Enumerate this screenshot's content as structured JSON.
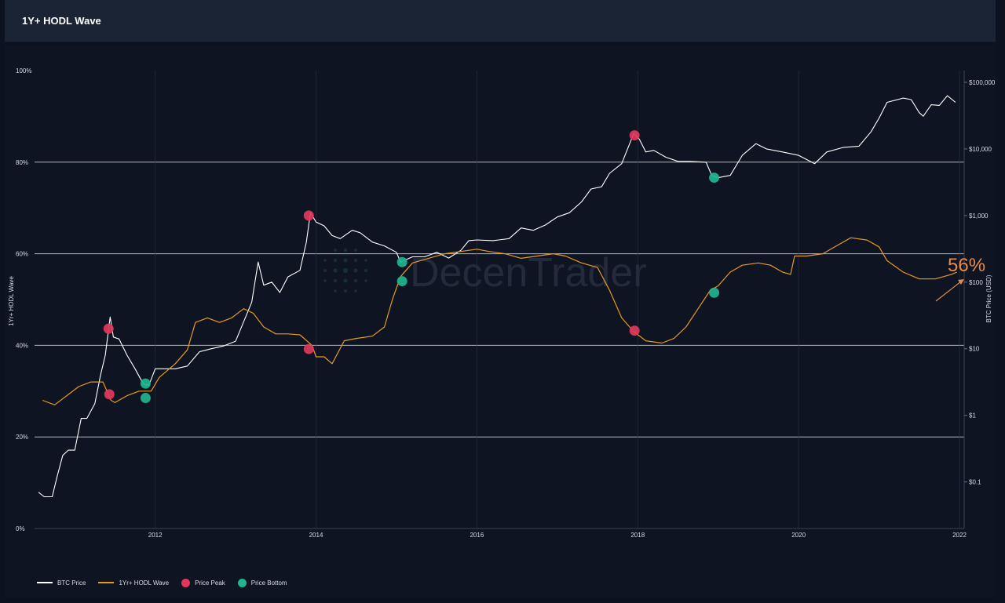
{
  "header": {
    "title": "1Y+ HODL Wave"
  },
  "watermark": {
    "text": "DecenTrader"
  },
  "annotation": {
    "label": "56%",
    "color": "#e88b4a"
  },
  "colors": {
    "btc_price": "#ffffff",
    "hodl_wave": "#e89a1f",
    "price_peak": "#e0385c",
    "price_bottom": "#1fb58f",
    "grid": "#cfd3da",
    "background": "#0e1422"
  },
  "legend": {
    "items": [
      {
        "label": "BTC Price",
        "kind": "line",
        "color": "#ffffff"
      },
      {
        "label": "1Yr+ HODL Wave",
        "kind": "line",
        "color": "#e89a1f"
      },
      {
        "label": "Price Peak",
        "kind": "dot",
        "color": "#e0385c"
      },
      {
        "label": "Price Bottom",
        "kind": "dot",
        "color": "#1fb58f"
      }
    ]
  },
  "chart_data": {
    "type": "line",
    "title": "1Y+ HODL Wave",
    "xlabel": "",
    "ylabel_left": "1Yr+ HODL Wave",
    "ylabel_right": "BTC Price (USD)",
    "x_range": [
      2010.5,
      2022.0
    ],
    "x_ticks": [
      2012,
      2014,
      2016,
      2018,
      2020,
      2022
    ],
    "x_tick_labels": [
      "2012",
      "2014",
      "2016",
      "2018",
      "2020",
      "2022"
    ],
    "y_left_range": [
      0,
      100
    ],
    "y_left_ticks": [
      0,
      20,
      40,
      60,
      80,
      100
    ],
    "y_left_tick_labels": [
      "0%",
      "20%",
      "40%",
      "60%",
      "80%",
      "100%"
    ],
    "y_right_scale": "log",
    "y_right_range": [
      0.02,
      150000
    ],
    "y_right_ticks": [
      0.1,
      1,
      10,
      100,
      1000,
      10000,
      100000
    ],
    "y_right_tick_labels": [
      "$0.1",
      "$1",
      "$10",
      "$100",
      "$1,000",
      "$10,000",
      "$100,000"
    ],
    "grid": true,
    "legend_position": "bottom-left",
    "series": [
      {
        "name": "BTC Price",
        "axis": "right",
        "points": [
          [
            2010.55,
            0.07
          ],
          [
            2010.62,
            0.06
          ],
          [
            2010.72,
            0.06
          ],
          [
            2010.78,
            0.12
          ],
          [
            2010.85,
            0.25
          ],
          [
            2010.92,
            0.3
          ],
          [
            2011.0,
            0.3
          ],
          [
            2011.08,
            0.9
          ],
          [
            2011.15,
            0.9
          ],
          [
            2011.25,
            1.5
          ],
          [
            2011.32,
            4
          ],
          [
            2011.38,
            8
          ],
          [
            2011.44,
            30
          ],
          [
            2011.48,
            15
          ],
          [
            2011.55,
            14
          ],
          [
            2011.65,
            8
          ],
          [
            2011.75,
            5
          ],
          [
            2011.85,
            3
          ],
          [
            2011.92,
            2.8
          ],
          [
            2012.0,
            5
          ],
          [
            2012.1,
            5
          ],
          [
            2012.25,
            5
          ],
          [
            2012.4,
            5.5
          ],
          [
            2012.55,
            9
          ],
          [
            2012.7,
            10
          ],
          [
            2012.85,
            11
          ],
          [
            2013.0,
            13
          ],
          [
            2013.2,
            50
          ],
          [
            2013.28,
            200
          ],
          [
            2013.35,
            90
          ],
          [
            2013.45,
            100
          ],
          [
            2013.55,
            70
          ],
          [
            2013.65,
            120
          ],
          [
            2013.8,
            150
          ],
          [
            2013.88,
            400
          ],
          [
            2013.93,
            1100
          ],
          [
            2014.0,
            800
          ],
          [
            2014.1,
            700
          ],
          [
            2014.2,
            500
          ],
          [
            2014.3,
            450
          ],
          [
            2014.45,
            600
          ],
          [
            2014.55,
            550
          ],
          [
            2014.7,
            400
          ],
          [
            2014.85,
            350
          ],
          [
            2015.0,
            280
          ],
          [
            2015.05,
            200
          ],
          [
            2015.2,
            240
          ],
          [
            2015.35,
            240
          ],
          [
            2015.5,
            280
          ],
          [
            2015.65,
            230
          ],
          [
            2015.8,
            300
          ],
          [
            2015.9,
            420
          ],
          [
            2016.0,
            430
          ],
          [
            2016.2,
            420
          ],
          [
            2016.4,
            450
          ],
          [
            2016.55,
            650
          ],
          [
            2016.7,
            600
          ],
          [
            2016.85,
            720
          ],
          [
            2017.0,
            950
          ],
          [
            2017.15,
            1100
          ],
          [
            2017.3,
            1600
          ],
          [
            2017.42,
            2500
          ],
          [
            2017.55,
            2700
          ],
          [
            2017.65,
            4300
          ],
          [
            2017.8,
            6000
          ],
          [
            2017.95,
            17000
          ],
          [
            2018.02,
            14000
          ],
          [
            2018.1,
            9000
          ],
          [
            2018.2,
            9500
          ],
          [
            2018.35,
            7500
          ],
          [
            2018.5,
            6500
          ],
          [
            2018.65,
            6500
          ],
          [
            2018.85,
            6300
          ],
          [
            2018.92,
            4000
          ],
          [
            2019.0,
            3700
          ],
          [
            2019.15,
            4000
          ],
          [
            2019.3,
            8000
          ],
          [
            2019.47,
            12000
          ],
          [
            2019.6,
            10000
          ],
          [
            2019.8,
            9000
          ],
          [
            2020.0,
            8000
          ],
          [
            2020.2,
            6000
          ],
          [
            2020.35,
            9000
          ],
          [
            2020.55,
            10500
          ],
          [
            2020.75,
            11000
          ],
          [
            2020.9,
            18000
          ],
          [
            2021.0,
            29000
          ],
          [
            2021.1,
            50000
          ],
          [
            2021.3,
            58000
          ],
          [
            2021.4,
            55000
          ],
          [
            2021.5,
            35000
          ],
          [
            2021.55,
            31000
          ],
          [
            2021.65,
            46000
          ],
          [
            2021.75,
            45000
          ],
          [
            2021.85,
            63000
          ],
          [
            2021.95,
            50000
          ]
        ]
      },
      {
        "name": "1Yr+ HODL Wave",
        "axis": "left",
        "points": [
          [
            2010.6,
            28
          ],
          [
            2010.75,
            27
          ],
          [
            2010.9,
            29
          ],
          [
            2011.05,
            31
          ],
          [
            2011.2,
            32
          ],
          [
            2011.35,
            32
          ],
          [
            2011.45,
            28
          ],
          [
            2011.5,
            27.5
          ],
          [
            2011.65,
            29
          ],
          [
            2011.8,
            30
          ],
          [
            2011.95,
            30
          ],
          [
            2012.05,
            33
          ],
          [
            2012.25,
            36
          ],
          [
            2012.4,
            39
          ],
          [
            2012.5,
            45
          ],
          [
            2012.65,
            46
          ],
          [
            2012.8,
            45
          ],
          [
            2012.95,
            46
          ],
          [
            2013.1,
            48
          ],
          [
            2013.22,
            47
          ],
          [
            2013.35,
            44
          ],
          [
            2013.5,
            42.5
          ],
          [
            2013.65,
            42.5
          ],
          [
            2013.8,
            42.3
          ],
          [
            2013.95,
            40
          ],
          [
            2014.0,
            37.5
          ],
          [
            2014.1,
            37.5
          ],
          [
            2014.2,
            36
          ],
          [
            2014.35,
            41
          ],
          [
            2014.5,
            41.5
          ],
          [
            2014.7,
            42
          ],
          [
            2014.85,
            44
          ],
          [
            2014.95,
            50
          ],
          [
            2015.05,
            55
          ],
          [
            2015.2,
            58
          ],
          [
            2015.4,
            59
          ],
          [
            2015.6,
            60
          ],
          [
            2015.8,
            60.5
          ],
          [
            2016.0,
            61
          ],
          [
            2016.15,
            60.5
          ],
          [
            2016.35,
            60
          ],
          [
            2016.55,
            59
          ],
          [
            2016.75,
            59.5
          ],
          [
            2016.95,
            60
          ],
          [
            2017.1,
            59.5
          ],
          [
            2017.3,
            58
          ],
          [
            2017.5,
            57
          ],
          [
            2017.65,
            52
          ],
          [
            2017.8,
            46
          ],
          [
            2017.95,
            43
          ],
          [
            2018.1,
            41
          ],
          [
            2018.3,
            40.5
          ],
          [
            2018.45,
            41.5
          ],
          [
            2018.6,
            44
          ],
          [
            2018.75,
            48
          ],
          [
            2018.9,
            52
          ],
          [
            2019.0,
            53
          ],
          [
            2019.15,
            56
          ],
          [
            2019.3,
            57.5
          ],
          [
            2019.5,
            58
          ],
          [
            2019.65,
            57.5
          ],
          [
            2019.8,
            56
          ],
          [
            2019.9,
            55.5
          ],
          [
            2019.95,
            59.5
          ],
          [
            2020.1,
            59.5
          ],
          [
            2020.3,
            60
          ],
          [
            2020.5,
            62
          ],
          [
            2020.65,
            63.5
          ],
          [
            2020.85,
            63
          ],
          [
            2021.0,
            61.5
          ],
          [
            2021.1,
            58.5
          ],
          [
            2021.3,
            56
          ],
          [
            2021.5,
            54.5
          ],
          [
            2021.7,
            54.5
          ],
          [
            2021.9,
            55.5
          ],
          [
            2021.97,
            56
          ]
        ]
      },
      {
        "name": "Price Peak",
        "kind": "markers",
        "points": [
          {
            "x": 2011.42,
            "axis": "right",
            "y": 20
          },
          {
            "x": 2011.43,
            "axis": "left",
            "y": 29.3
          },
          {
            "x": 2013.91,
            "axis": "right",
            "y": 1000
          },
          {
            "x": 2013.91,
            "axis": "left",
            "y": 39.2
          },
          {
            "x": 2017.96,
            "axis": "right",
            "y": 16000
          },
          {
            "x": 2017.96,
            "axis": "left",
            "y": 43.2
          }
        ]
      },
      {
        "name": "Price Bottom",
        "kind": "markers",
        "points": [
          {
            "x": 2011.88,
            "axis": "right",
            "y": 3
          },
          {
            "x": 2011.88,
            "axis": "left",
            "y": 28.5
          },
          {
            "x": 2015.07,
            "axis": "right",
            "y": 200
          },
          {
            "x": 2015.07,
            "axis": "left",
            "y": 54
          },
          {
            "x": 2018.95,
            "axis": "right",
            "y": 3700
          },
          {
            "x": 2018.95,
            "axis": "left",
            "y": 51.5
          }
        ]
      }
    ]
  }
}
